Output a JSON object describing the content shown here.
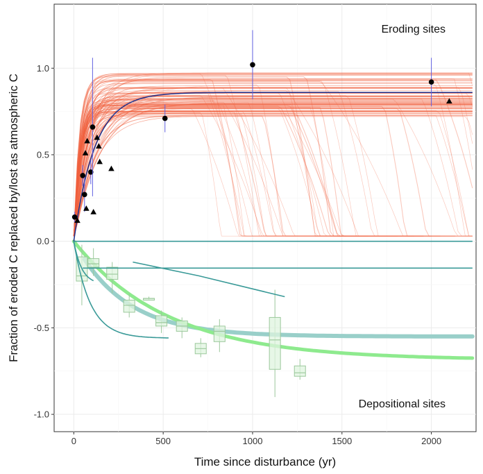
{
  "chart_data": {
    "type": "scatter",
    "xlabel": "Time since disturbance (yr)",
    "ylabel": "Fraction of eroded C replaced by/lost as atmospheric C",
    "xlim": [
      -110,
      2250
    ],
    "ylim": [
      -1.1,
      1.37
    ],
    "x_ticks": [
      0,
      500,
      1000,
      1500,
      2000
    ],
    "y_ticks": [
      -1.0,
      -0.5,
      0.0,
      0.5,
      1.0
    ],
    "grid": true,
    "annotations": [
      {
        "text": "Eroding sites",
        "x": 1950,
        "y": 1.22
      },
      {
        "text": "Depositional sites",
        "x": 1950,
        "y": -0.93
      }
    ],
    "eroding_mean_curve": {
      "asymptote": 0.86,
      "rate": 0.0085
    },
    "eroding_points_circle": [
      {
        "x": 5,
        "y": 0.14,
        "err": 0.03
      },
      {
        "x": 50,
        "y": 0.38,
        "err": 0.06
      },
      {
        "x": 60,
        "y": 0.27,
        "err": 0.1
      },
      {
        "x": 95,
        "y": 0.4,
        "err": 0.07
      },
      {
        "x": 105,
        "y": 0.66,
        "err": 0.4
      },
      {
        "x": 510,
        "y": 0.71,
        "err": 0.08
      },
      {
        "x": 1000,
        "y": 1.02,
        "err": 0.2
      },
      {
        "x": 2000,
        "y": 0.92,
        "err": 0.14
      }
    ],
    "eroding_points_triangle": [
      {
        "x": 20,
        "y": 0.12
      },
      {
        "x": 65,
        "y": 0.51
      },
      {
        "x": 70,
        "y": 0.19
      },
      {
        "x": 75,
        "y": 0.58
      },
      {
        "x": 110,
        "y": 0.17
      },
      {
        "x": 130,
        "y": 0.6
      },
      {
        "x": 140,
        "y": 0.55
      },
      {
        "x": 145,
        "y": 0.46
      },
      {
        "x": 210,
        "y": 0.42
      },
      {
        "x": 2100,
        "y": 0.81
      }
    ],
    "depositional_boxes": [
      {
        "x": 45,
        "q1": -0.23,
        "median": -0.2,
        "q3": -0.09,
        "wlo": -0.37,
        "whi": -0.02
      },
      {
        "x": 110,
        "q1": -0.15,
        "median": -0.13,
        "q3": -0.1,
        "wlo": -0.2,
        "whi": -0.04
      },
      {
        "x": 215,
        "q1": -0.22,
        "median": -0.19,
        "q3": -0.15,
        "wlo": -0.3,
        "whi": -0.12
      },
      {
        "x": 310,
        "q1": -0.41,
        "median": -0.37,
        "q3": -0.34,
        "wlo": -0.44,
        "whi": -0.3
      },
      {
        "x": 420,
        "q1": -0.34,
        "median": -0.33,
        "q3": -0.33,
        "wlo": -0.34,
        "whi": -0.32
      },
      {
        "x": 490,
        "q1": -0.49,
        "median": -0.47,
        "q3": -0.43,
        "wlo": -0.53,
        "whi": -0.4
      },
      {
        "x": 605,
        "q1": -0.52,
        "median": -0.49,
        "q3": -0.46,
        "wlo": -0.56,
        "whi": -0.44
      },
      {
        "x": 710,
        "q1": -0.65,
        "median": -0.62,
        "q3": -0.59,
        "wlo": -0.67,
        "whi": -0.56
      },
      {
        "x": 815,
        "q1": -0.58,
        "median": -0.52,
        "q3": -0.49,
        "wlo": -0.64,
        "whi": -0.45
      },
      {
        "x": 1125,
        "q1": -0.74,
        "median": -0.57,
        "q3": -0.44,
        "wlo": -0.9,
        "whi": -0.28
      },
      {
        "x": 1265,
        "q1": -0.78,
        "median": -0.76,
        "q3": -0.72,
        "wlo": -0.8,
        "whi": -0.68
      }
    ],
    "depositional_lines": [
      {
        "type": "hline",
        "y": 0.0,
        "x_start": 0,
        "x_end": 2230
      },
      {
        "type": "hline",
        "y": -0.155,
        "x_start": 50,
        "x_end": 2230
      },
      {
        "type": "decay",
        "x_start": 0,
        "x_end": 110,
        "asymptote": -0.25,
        "rate": 0.022
      },
      {
        "type": "decay",
        "x_start": 0,
        "x_end": 530,
        "asymptote": -0.56,
        "rate": 0.011
      },
      {
        "type": "segment",
        "points": [
          [
            330,
            -0.12
          ],
          [
            700,
            -0.2
          ],
          [
            1180,
            -0.32
          ]
        ]
      }
    ],
    "depositional_green_curve": {
      "asymptote": -0.685,
      "rate": 0.0019
    },
    "depositional_blue_curve": {
      "asymptote": -0.55,
      "rate": 0.0035
    },
    "colors": {
      "ensemble": "#f0603e",
      "mean_curve": "#1f2f8a",
      "error_bar": "#6060e0",
      "points": "#000000",
      "teal": "#3a9a98",
      "green_curve": "#8eea8e",
      "blue_curve": "#99cfc9",
      "box_fill": "#dff4df",
      "box_stroke": "#9bc89b"
    }
  }
}
